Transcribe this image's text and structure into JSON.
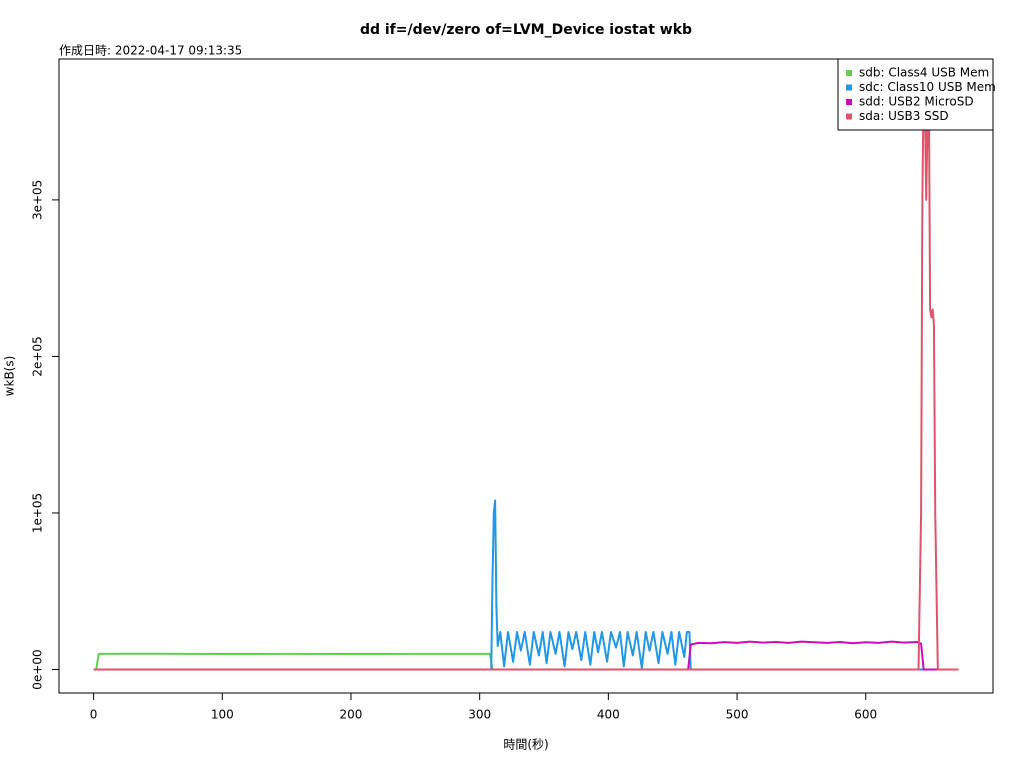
{
  "chart_data": {
    "type": "line",
    "title": "dd if=/dev/zero of=LVM_Device iostat wkb",
    "subtitle": "作成日時: 2022-04-17 09:13:35",
    "x_label": "時間(秒)",
    "y_label": "wkB(s)",
    "xlim": [
      -26.88,
      698.88
    ],
    "ylim": [
      -15000,
      390000
    ],
    "xticks": [
      0,
      100,
      200,
      300,
      400,
      500,
      600
    ],
    "yticks": [
      {
        "value": 0,
        "label": "0e+00"
      },
      {
        "value": 100000,
        "label": "1e+05"
      },
      {
        "value": 200000,
        "label": "2e+05"
      },
      {
        "value": 300000,
        "label": "3e+05"
      }
    ],
    "legend": "top-right",
    "series": [
      {
        "name": "sdb: Class4 USB Mem",
        "color": "#61D04F",
        "x": [
          0,
          2,
          4,
          50,
          100,
          150,
          200,
          250,
          300,
          308,
          310,
          672
        ],
        "values": [
          0,
          0,
          10000,
          10100,
          9900,
          10000,
          9900,
          10000,
          10000,
          10000,
          0,
          0
        ]
      },
      {
        "name": "sdc: Class10 USB Mem",
        "color": "#2297E6",
        "x": [
          0,
          309,
          310,
          311,
          312,
          313,
          314,
          316,
          319,
          322,
          326,
          329,
          332,
          335,
          339,
          342,
          346,
          349,
          352,
          355,
          359,
          362,
          366,
          369,
          372,
          375,
          379,
          382,
          386,
          389,
          392,
          395,
          399,
          402,
          406,
          409,
          412,
          415,
          419,
          422,
          426,
          429,
          432,
          435,
          439,
          442,
          446,
          449,
          452,
          455,
          459,
          461,
          463,
          464,
          672
        ],
        "values": [
          0,
          0,
          60000,
          100000,
          108000,
          40000,
          15000,
          24000,
          2000,
          24000,
          5000,
          24000,
          12000,
          24000,
          3000,
          24000,
          9000,
          24000,
          4000,
          24000,
          10000,
          24000,
          2000,
          24000,
          13000,
          24000,
          6000,
          24000,
          3000,
          24000,
          11000,
          24000,
          5000,
          24000,
          14000,
          24000,
          2000,
          24000,
          9000,
          24000,
          1000,
          24000,
          12000,
          24000,
          4000,
          24000,
          10000,
          24000,
          3000,
          24000,
          8000,
          24000,
          24000,
          0,
          0
        ]
      },
      {
        "name": "sdd: USB2 MicroSD",
        "color": "#CD0BBC",
        "x": [
          0,
          462,
          464,
          470,
          480,
          490,
          500,
          510,
          520,
          530,
          540,
          550,
          560,
          570,
          580,
          590,
          600,
          610,
          620,
          630,
          640,
          643,
          645,
          672
        ],
        "values": [
          0,
          0,
          16000,
          17000,
          16800,
          17500,
          17000,
          17800,
          17200,
          17600,
          17000,
          17800,
          17400,
          17000,
          17600,
          16800,
          17400,
          17000,
          17800,
          17200,
          17600,
          16500,
          0,
          0
        ]
      },
      {
        "name": "sda: USB3 SSD",
        "color": "#DF536B",
        "x": [
          0,
          641,
          643,
          644,
          645,
          646,
          647,
          648,
          649,
          650,
          651,
          652,
          653,
          654,
          656,
          672
        ],
        "values": [
          0,
          0,
          100000,
          300000,
          375000,
          360000,
          300000,
          350000,
          375000,
          230000,
          225000,
          230000,
          220000,
          100000,
          0,
          0
        ]
      }
    ]
  }
}
